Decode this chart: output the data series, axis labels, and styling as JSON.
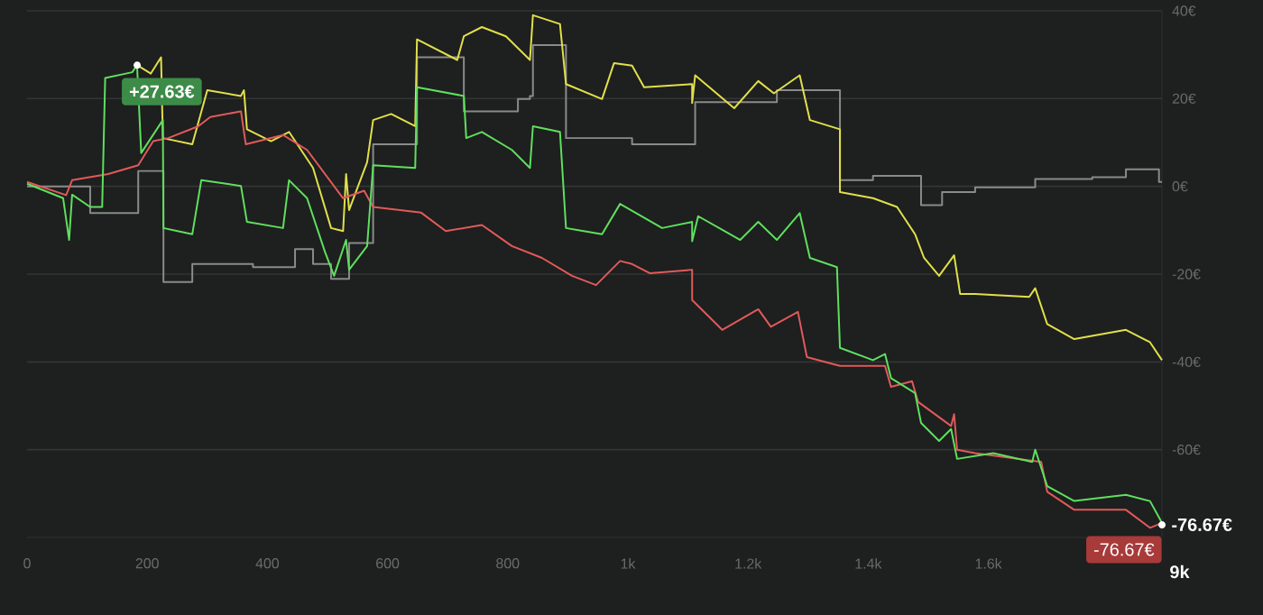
{
  "chart_data": {
    "type": "line",
    "grid": "y",
    "line_style": "solid",
    "marker": "none",
    "xlim": [
      0,
      1889
    ],
    "ylim": [
      -80,
      40
    ],
    "xticks": [
      0,
      200,
      400,
      600,
      800,
      {
        "value": 1000,
        "label": "1k"
      },
      {
        "value": 1200,
        "label": "1.2k"
      },
      {
        "value": 1400,
        "label": "1.4k"
      },
      {
        "value": 1600,
        "label": "1.6k"
      }
    ],
    "yticks": [
      {
        "value": 40,
        "label": "40€"
      },
      {
        "value": 20,
        "label": "20€"
      },
      {
        "value": 0,
        "label": "0€"
      },
      {
        "value": -20,
        "label": "-20€"
      },
      {
        "value": -40,
        "label": "-40€"
      },
      {
        "value": -60,
        "label": "-60€"
      }
    ],
    "series": [
      {
        "type": "step",
        "color": "#8a8a8a",
        "x": [
          0,
          105,
          185,
          227,
          275,
          376,
          446,
          476,
          506,
          536,
          576,
          649,
          727,
          817,
          837,
          842,
          897,
          1007,
          1112,
          1248,
          1353,
          1408,
          1488,
          1523,
          1578,
          1678,
          1773,
          1829,
          1884,
          1889
        ],
        "values": [
          0,
          -6.1,
          3.5,
          -21.8,
          -17.7,
          -18.4,
          -14.3,
          -17.7,
          -21.1,
          -12.9,
          9.6,
          29.4,
          17.1,
          19.9,
          20.6,
          32.2,
          11,
          9.6,
          19.2,
          21.9,
          1.4,
          2.4,
          -4.3,
          -1.3,
          -0.2,
          1.7,
          2.1,
          3.9,
          1,
          1
        ]
      },
      {
        "color": "#e0e04a",
        "x": [
          183,
          206,
          223,
          226,
          275,
          300,
          356,
          361,
          366,
          406,
          436,
          476,
          506,
          526,
          531,
          536,
          566,
          576,
          606,
          646,
          649,
          716,
          727,
          757,
          797,
          837,
          842,
          887,
          897,
          957,
          977,
          1007,
          1027,
          1107,
          1107,
          1112,
          1177,
          1217,
          1243,
          1286,
          1303,
          1353,
          1353,
          1408,
          1448,
          1478,
          1493,
          1518,
          1543,
          1553,
          1578,
          1668,
          1678,
          1698,
          1743,
          1829,
          1869,
          1889
        ],
        "values": [
          27.63,
          25.7,
          29.4,
          11,
          9.6,
          21.9,
          20.6,
          21.9,
          13,
          10.3,
          12.4,
          4.2,
          -9.5,
          -10.2,
          2.8,
          -5.4,
          5.5,
          15.1,
          16.5,
          13.7,
          33.5,
          28.8,
          34.2,
          36.3,
          34.2,
          28.8,
          39,
          37,
          23.3,
          19.9,
          28.1,
          27.5,
          22.6,
          23.3,
          19,
          25.3,
          17.8,
          24,
          21.2,
          25.3,
          15.1,
          13,
          -1.3,
          -2.7,
          -4.7,
          -10.9,
          -16.3,
          -20.4,
          -15.7,
          -24.5,
          -24.5,
          -25.2,
          -23.2,
          -31.4,
          -34.8,
          -32.7,
          -35.5,
          -39.6
        ]
      },
      {
        "color": "#e05a5a",
        "x": [
          0,
          65,
          75,
          135,
          185,
          210,
          235,
          285,
          305,
          356,
          364,
          426,
          466,
          496,
          526,
          561,
          576,
          656,
          697,
          757,
          807,
          857,
          907,
          947,
          987,
          1007,
          1037,
          1107,
          1107,
          1157,
          1217,
          1238,
          1283,
          1298,
          1353,
          1428,
          1438,
          1473,
          1483,
          1538,
          1543,
          1548,
          1578,
          1688,
          1698,
          1743,
          1829,
          1869,
          1889
        ],
        "values": [
          1,
          -2,
          1.4,
          2.8,
          4.8,
          10.3,
          11,
          13.7,
          15.8,
          17.1,
          9.6,
          11.7,
          8.3,
          2.8,
          -2.7,
          -1,
          -4.7,
          -6,
          -10.2,
          -8.8,
          -13.6,
          -16.3,
          -20.4,
          -22.5,
          -17,
          -17.7,
          -19.8,
          -19,
          -25.9,
          -32.7,
          -28,
          -32,
          -28.6,
          -38.9,
          -40.9,
          -40.9,
          -45.7,
          -44.4,
          -49.1,
          -54.6,
          -51.9,
          -60,
          -60.8,
          -62.8,
          -69.6,
          -73.7,
          -73.7,
          -77.8,
          -76.67
        ]
      },
      {
        "color": "#5ee05e",
        "x": [
          0,
          60,
          70,
          75,
          105,
          125,
          130,
          175,
          183,
          190,
          226,
          227,
          275,
          290,
          356,
          366,
          426,
          436,
          466,
          496,
          511,
          531,
          536,
          566,
          576,
          646,
          649,
          727,
          731,
          757,
          807,
          837,
          842,
          887,
          897,
          957,
          987,
          1057,
          1107,
          1107,
          1117,
          1187,
          1217,
          1248,
          1286,
          1303,
          1348,
          1353,
          1408,
          1428,
          1438,
          1478,
          1488,
          1518,
          1538,
          1548,
          1608,
          1673,
          1678,
          1698,
          1743,
          1829,
          1869,
          1889
        ],
        "values": [
          0.6,
          -2.7,
          -12.2,
          -1.9,
          -4.7,
          -4.7,
          24.7,
          26,
          27.63,
          7.6,
          15.1,
          -9.5,
          -10.9,
          1.4,
          0.1,
          -8.1,
          -9.5,
          1.4,
          -2.7,
          -15,
          -20.4,
          -12.2,
          -19,
          -13.6,
          4.8,
          4.2,
          22.6,
          20.6,
          11,
          12.4,
          8.3,
          4.2,
          13.7,
          12.4,
          -9.5,
          -10.9,
          -4,
          -9.5,
          -8.1,
          -12.5,
          -6.8,
          -12.2,
          -8.1,
          -12.2,
          -6.1,
          -16.3,
          -18.4,
          -36.8,
          -39.6,
          -38.2,
          -43.7,
          -47.1,
          -53.9,
          -58,
          -55.3,
          -62.1,
          -60.8,
          -62.8,
          -60,
          -68.3,
          -71.7,
          -70.3,
          -71.7,
          -76.67
        ]
      }
    ],
    "annotations": [
      "+27.63€",
      "-76.67€",
      "-76.67€",
      "9k"
    ]
  }
}
